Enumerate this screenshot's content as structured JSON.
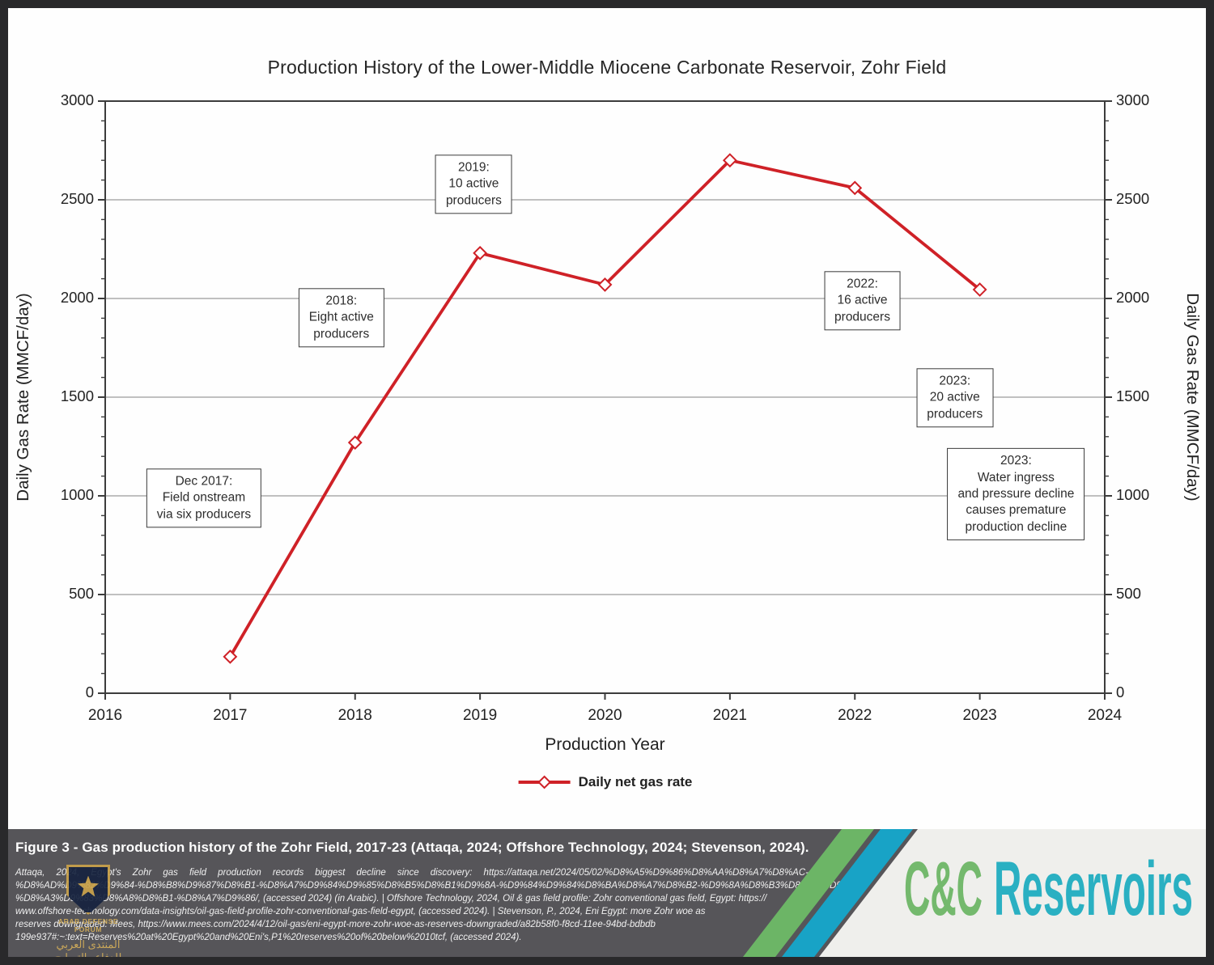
{
  "chart_data": {
    "type": "line",
    "title": "Production History of the Lower-Middle Miocene Carbonate Reservoir, Zohr Field",
    "xlabel": "Production Year",
    "ylabel_left": "Daily Gas Rate (MMCF/day)",
    "ylabel_right": "Daily Gas Rate (MMCF/day)",
    "xlim": [
      2016,
      2024
    ],
    "ylim": [
      0,
      3000
    ],
    "x_ticks": [
      2016,
      2017,
      2018,
      2019,
      2020,
      2021,
      2022,
      2023,
      2024
    ],
    "y_ticks": [
      0,
      500,
      1000,
      1500,
      2000,
      2500,
      3000
    ],
    "y_minor_step": 100,
    "grid": "horizontal-major",
    "legend_position": "bottom-center",
    "line_color": "#cf2127",
    "series": [
      {
        "name": "Daily net gas rate",
        "marker": "open-diamond",
        "x": [
          2017,
          2018,
          2019,
          2020,
          2021,
          2022,
          2023
        ],
        "y": [
          185,
          1270,
          2230,
          2070,
          2700,
          2560,
          2045
        ]
      }
    ],
    "annotations": [
      {
        "label": "Dec 2017:\nField onstream\nvia six producers",
        "x": 2016.79,
        "y": 988
      },
      {
        "label": "2018:\nEight active\nproducers",
        "x": 2017.89,
        "y": 1902
      },
      {
        "label": "2019:\n10 active\nproducers",
        "x": 2018.95,
        "y": 2578
      },
      {
        "label": "2022:\n16 active\nproducers",
        "x": 2022.06,
        "y": 1988
      },
      {
        "label": "2023:\n20 active\nproducers",
        "x": 2022.8,
        "y": 1496
      },
      {
        "label": "2023:\nWater ingress\nand pressure decline\ncauses premature\nproduction decline",
        "x": 2023.29,
        "y": 1008
      }
    ]
  },
  "legend": {
    "label": "Daily net gas rate"
  },
  "caption": {
    "figure_caption": "Figure 3 - Gas production history of the Zohr Field, 2017-23 (Attaqa, 2024; Offshore Technology, 2024; Stevenson, 2024).",
    "citation_lines": [
      "Attaqa, 2024, Egypt's Zohr gas field production records biggest decline since discovery: https://attaqa.net/2024/05/02/%D8%A5%D9%86%D8%AA%D8%A7%D8%AC-",
      "%D8%AD%D9%82%D9%84-%D8%B8%D9%87%D8%B1-%D8%A7%D9%84%D9%85%D8%B5%D8%B1%D9%8A-%D9%84%D9%84%D8%BA%D8%A7%D8%B2-%D9%8A%D8%B3%D8%AC%D9%84-",
      "%D8%A3%D9%83%D8%A8%D8%B1-%D8%A7%D9%86/, (accessed 2024) (in Arabic).  |  Offshore Technology, 2024, Oil & gas field profile: Zohr conventional gas field, Egypt: https://",
      "www.offshore-technology.com/data-insights/oil-gas-field-profile-zohr-conventional-gas-field-egypt, (accessed 2024).  |  Stevenson, P., 2024, Eni Egypt: more Zohr woe as",
      "reserves downgraded: Mees, https://www.mees.com/2024/4/12/oil-gas/eni-egypt-more-zohr-woe-as-reserves-downgraded/a82b58f0-f8cd-11ee-94bd-bdbdb",
      "199e937#:~:text=Reserves%20at%20Egypt%20and%20Eni's,P1%20reserves%20of%20below%2010tcf, (accessed 2024)."
    ]
  },
  "watermark": {
    "line1": "ARAB DEFENSE FORUM",
    "line2": "المنتدى العربي للدفاع والتسليح"
  },
  "logo": {
    "part1": "C&C",
    "part2": "Reservoirs",
    "green": "#74b96d",
    "teal": "#2ab0c2",
    "stripe_green": "#6cb566",
    "stripe_teal": "#18a3c6"
  }
}
